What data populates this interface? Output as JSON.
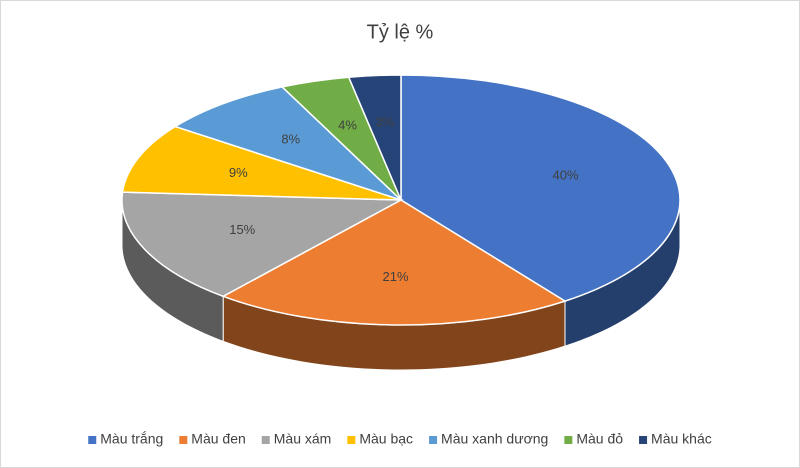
{
  "chart_data": {
    "type": "pie3d",
    "title": "Tỷ lệ %",
    "categories": [
      "Màu trắng",
      "Màu đen",
      "Màu xám",
      "Màu bạc",
      "Màu xanh dương",
      "Màu đỏ",
      "Màu khác"
    ],
    "values": [
      40,
      21,
      15,
      9,
      8,
      4,
      3
    ],
    "value_labels": [
      "40%",
      "21%",
      "15%",
      "9%",
      "8%",
      "4%",
      "3%"
    ],
    "colors": [
      "#4472c4",
      "#ed7d31",
      "#a5a5a5",
      "#ffc000",
      "#5b9bd5",
      "#70ad47",
      "#264478"
    ],
    "legend": "bottom"
  }
}
